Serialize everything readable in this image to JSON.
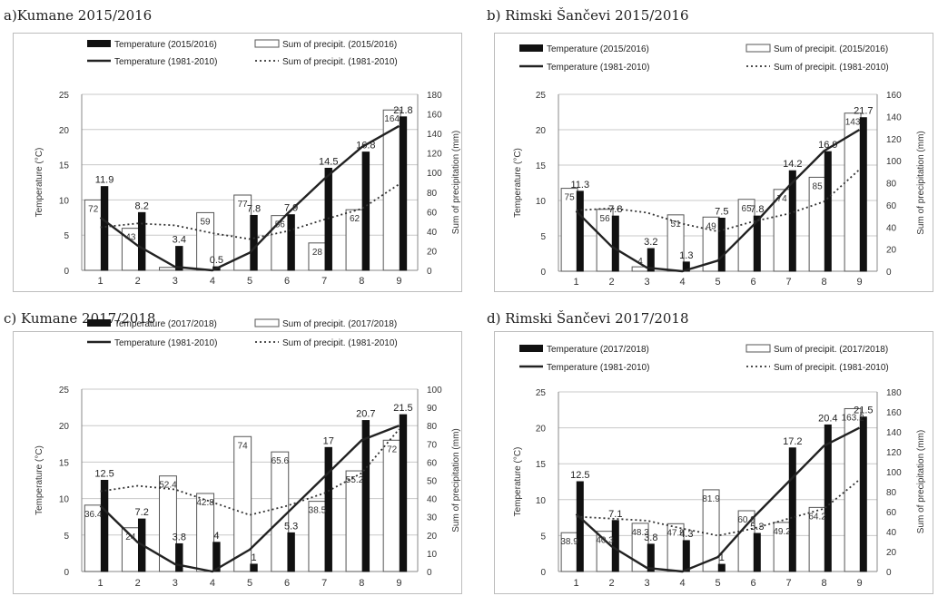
{
  "colors": {
    "temperature_bar": "#111111",
    "precip_bar": "#ffffff",
    "bar_edge": "#555555",
    "normal_temp_line": "#222222",
    "normal_precip_line": "#333333",
    "grid": "#c8c8c8"
  },
  "chart_data": [
    {
      "type": "bar",
      "panel_title": "a)Kumane 2015/2016",
      "legend": [
        "Temperature (2015/2016)",
        "Sum of precipit. (2015/2016)",
        "Temperature (1981-2010)",
        "Sum of precipit. (1981-2010)"
      ],
      "ylabel": "Temperature  (°C)",
      "y2label": "Sum of precipitation  (mm)",
      "categories": [
        "1",
        "2",
        "3",
        "4",
        "5",
        "6",
        "7",
        "8",
        "9"
      ],
      "ylim": [
        0,
        25
      ],
      "yticks": [
        "0",
        "5",
        "10",
        "15",
        "20",
        "25"
      ],
      "y2lim": [
        0,
        180
      ],
      "y2ticks": [
        "0",
        "20",
        "40",
        "60",
        "80",
        "100",
        "120",
        "140",
        "160",
        "180"
      ],
      "temperature": [
        11.9,
        8.2,
        3.4,
        0.5,
        7.8,
        7.9,
        14.5,
        16.8,
        21.8
      ],
      "temperature_labels": [
        "11.9",
        "8.2",
        "3.4",
        "0.5",
        "7.8",
        "7.9",
        "14.5",
        "16.8",
        "21.8"
      ],
      "precipitation": [
        72,
        43,
        3,
        59,
        77,
        56,
        28,
        62,
        164
      ],
      "precipitation_labels": [
        "72",
        "43",
        "",
        "59",
        "77",
        "56",
        "28",
        "62",
        "164"
      ],
      "temperature_normal": [
        7.5,
        3.5,
        0.5,
        0,
        2.5,
        8,
        13,
        17.5,
        20.5
      ],
      "precipitation_normal": [
        44,
        48,
        46,
        38,
        32,
        40,
        52,
        63,
        88
      ],
      "grid": true
    },
    {
      "type": "bar",
      "panel_title": "b) Rimski Šančevi 2015/2016",
      "legend": [
        "Temperature (2015/2016)",
        "Sum of precipit. (2015/2016)",
        "Temperature (1981-2010)",
        "Sum of precipit. (1981-2010)"
      ],
      "ylabel": "Temperature  (°C)",
      "y2label": "Sum of precipitation  (mm)",
      "categories": [
        "1",
        "2",
        "3",
        "4",
        "5",
        "6",
        "7",
        "8",
        "9"
      ],
      "ylim": [
        0,
        25
      ],
      "yticks": [
        "0",
        "5",
        "10",
        "15",
        "20",
        "25"
      ],
      "y2lim": [
        0,
        160
      ],
      "y2ticks": [
        "0",
        "20",
        "40",
        "60",
        "80",
        "100",
        "120",
        "140",
        "160"
      ],
      "temperature": [
        11.3,
        7.8,
        3.2,
        1.3,
        7.5,
        7.8,
        14.2,
        16.9,
        21.7
      ],
      "temperature_labels": [
        "11.3",
        "7.8",
        "3.2",
        "1.3",
        "7.5",
        "7.8",
        "14.2",
        "16.9",
        "21.7"
      ],
      "precipitation": [
        75,
        56,
        4,
        51,
        49,
        65,
        74,
        85,
        143
      ],
      "precipitation_labels": [
        "75",
        "56",
        "4",
        "51",
        "49",
        "65",
        "74",
        "85",
        "143"
      ],
      "temperature_normal": [
        8.5,
        3.5,
        0.5,
        0,
        1.5,
        6.5,
        12,
        17,
        20
      ],
      "precipitation_normal": [
        55,
        57,
        53,
        43,
        36,
        45,
        52,
        63,
        92
      ],
      "grid": true
    },
    {
      "type": "bar",
      "panel_title": "c) Kumane 2017/2018",
      "legend": [
        "Temperature (2017/2018)",
        "Sum of precipit. (2017/2018)",
        "Temperature (1981-2010)",
        "Sum of precipit. (1981-2010)"
      ],
      "ylabel": "Temperature  (°C)",
      "y2label": "Sum of precipitation  (mm)",
      "categories": [
        "1",
        "2",
        "3",
        "4",
        "5",
        "6",
        "7",
        "8",
        "9"
      ],
      "ylim": [
        0,
        25
      ],
      "yticks": [
        "0",
        "5",
        "10",
        "15",
        "20",
        "25"
      ],
      "y2lim": [
        0,
        100
      ],
      "y2ticks": [
        "0",
        "10",
        "20",
        "30",
        "40",
        "50",
        "60",
        "70",
        "80",
        "90",
        "100"
      ],
      "temperature": [
        12.5,
        7.2,
        3.8,
        4,
        1,
        5.3,
        17,
        20.7,
        21.5
      ],
      "temperature_labels": [
        "12.5",
        "7.2",
        "3.8",
        "4",
        "1",
        "5.3",
        "17",
        "20.7",
        "21.5"
      ],
      "precipitation": [
        36.4,
        24,
        52.4,
        42.8,
        74,
        65.6,
        38.5,
        55.2,
        72
      ],
      "precipitation_labels": [
        "36.4",
        "24",
        "52.4",
        "42.8",
        "74",
        "65.6",
        "38.5",
        "55.2",
        "72"
      ],
      "temperature_normal": [
        9,
        4,
        1,
        0,
        3,
        8,
        13,
        18,
        20
      ],
      "precipitation_normal": [
        44,
        47,
        45,
        38,
        31,
        36,
        43,
        54,
        78
      ],
      "grid": true
    },
    {
      "type": "bar",
      "panel_title": "d) Rimski Šančevi 2017/2018",
      "legend": [
        "Temperature (2017/2018)",
        "Sum of precipit. (2017/2018)",
        "Temperature (1981-2010)",
        "Sum of precipit. (1981-2010)"
      ],
      "ylabel": "Temperature  (°C)",
      "y2label": "Sum of precipitation  (mm)",
      "categories": [
        "1",
        "2",
        "3",
        "4",
        "5",
        "6",
        "7",
        "8",
        "9"
      ],
      "ylim": [
        0,
        25
      ],
      "yticks": [
        "0",
        "5",
        "10",
        "15",
        "20",
        "25"
      ],
      "y2lim": [
        0,
        180
      ],
      "y2ticks": [
        "0",
        "20",
        "40",
        "60",
        "80",
        "100",
        "120",
        "140",
        "160",
        "180"
      ],
      "temperature": [
        12.5,
        7.1,
        3.8,
        4.3,
        1,
        5.3,
        17.2,
        20.4,
        21.5
      ],
      "temperature_labels": [
        "12.5",
        "7.1",
        "3.8",
        "4.3",
        "1",
        "5.3",
        "17.2",
        "20.4",
        "21.5"
      ],
      "precipitation": [
        38.9,
        40.3,
        48.3,
        47.9,
        81.9,
        60.9,
        49.2,
        64.2,
        163.2
      ],
      "precipitation_labels": [
        "38.9",
        "40.3",
        "48.3",
        "47.9",
        "81.9",
        "60.9",
        "49.2",
        "64.2",
        "163.2"
      ],
      "temperature_normal": [
        8,
        3.5,
        0.5,
        0,
        2,
        7.5,
        12.5,
        17.5,
        20
      ],
      "precipitation_normal": [
        55,
        53,
        51,
        43,
        36,
        43,
        53,
        63,
        92
      ],
      "grid": true
    }
  ]
}
